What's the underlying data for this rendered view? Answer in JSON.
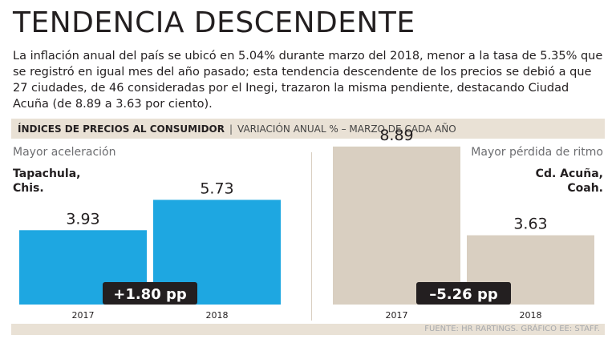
{
  "header": {
    "title": "TENDENCIA DESCENDENTE",
    "intro": "La inflación anual del país se ubicó en 5.04% durante marzo del 2018, menor a la tasa de 5.35% que se registró en igual mes del año pasado; esta tendencia descendente de los precios se debió a que 27 ciudades, de 46 consideradas por el Inegi, trazaron la misma pendiente, destacando Ciudad Acuña (de 8.89 a 3.63 por ciento)."
  },
  "subheader": {
    "bold": "ÍNDICES DE PRECIOS AL CONSUMIDOR",
    "sep": "|",
    "rest": "VARIACIÓN ANUAL % –  MARZO DE CADA AÑO"
  },
  "colors": {
    "left_bar": "#1ea7e1",
    "right_bar": "#d9cfc1",
    "badge": "#231f20"
  },
  "chart_data": [
    {
      "type": "bar",
      "panel_label": "Mayor aceleración",
      "city_line1": "Tapachula,",
      "city_line2": "Chis.",
      "categories": [
        "2017",
        "2018"
      ],
      "values": [
        3.93,
        5.73
      ],
      "value_labels": [
        "3.93",
        "5.73"
      ],
      "difference_label": "+1.80 pp",
      "ylim": [
        0,
        9.5
      ]
    },
    {
      "type": "bar",
      "panel_label": "Mayor pérdida de ritmo",
      "city_line1": "Cd. Acuña,",
      "city_line2": "Coah.",
      "categories": [
        "2017",
        "2018"
      ],
      "values": [
        8.89,
        3.63
      ],
      "value_labels": [
        "8.89",
        "3.63"
      ],
      "difference_label": "–5.26 pp",
      "ylim": [
        0,
        9.5
      ]
    }
  ],
  "footer": {
    "source": "FUENTE: HR RARTINGS.  GRÁFICO EE: STAFF."
  }
}
